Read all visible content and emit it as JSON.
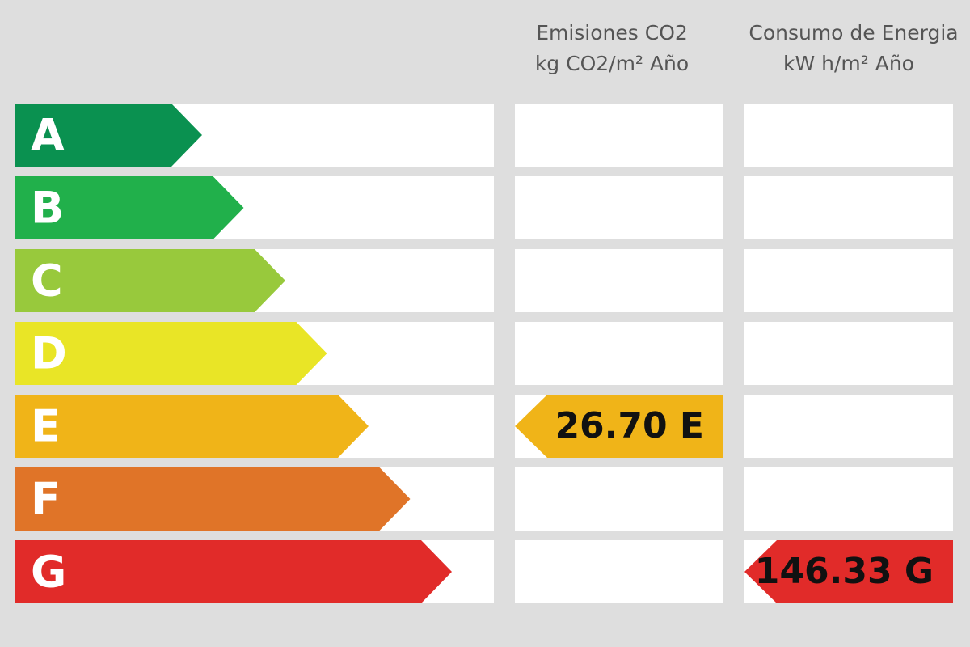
{
  "headers": {
    "co2": [
      "Emisiones CO2",
      "kg CO2/m² Año"
    ],
    "energy": [
      "Consumo de Energia",
      "kW h/m² Año"
    ]
  },
  "grades": [
    {
      "letter": "A",
      "color": "#0a9150"
    },
    {
      "letter": "B",
      "color": "#21b04b"
    },
    {
      "letter": "C",
      "color": "#98c93c"
    },
    {
      "letter": "D",
      "color": "#e9e526"
    },
    {
      "letter": "E",
      "color": "#f0b418",
      "co2": "26.70 E"
    },
    {
      "letter": "F",
      "color": "#e07428"
    },
    {
      "letter": "G",
      "color": "#e12b29",
      "energy": "146.33 G"
    }
  ]
}
